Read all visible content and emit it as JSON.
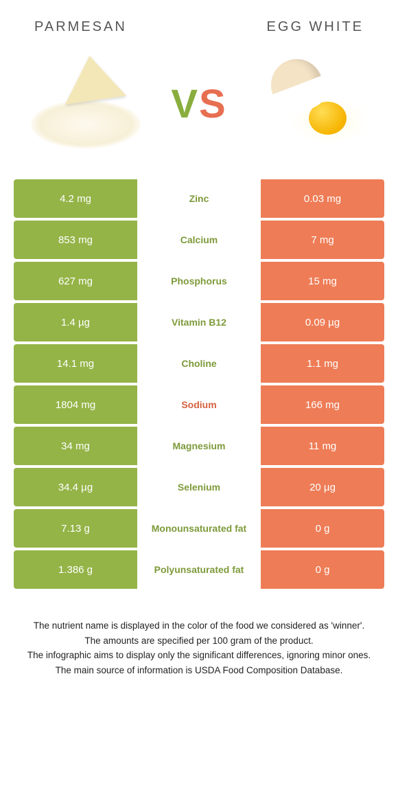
{
  "colors": {
    "left": "#94b447",
    "right": "#ee7c56",
    "left_text": "#7e9a3a",
    "right_text": "#d4603d"
  },
  "header": {
    "left_title": "Parmesan",
    "right_title": "Egg white"
  },
  "vs": {
    "v": "V",
    "s": "S"
  },
  "rows": [
    {
      "left": "4.2 mg",
      "name": "Zinc",
      "right": "0.03 mg",
      "winner": "left"
    },
    {
      "left": "853 mg",
      "name": "Calcium",
      "right": "7 mg",
      "winner": "left"
    },
    {
      "left": "627 mg",
      "name": "Phosphorus",
      "right": "15 mg",
      "winner": "left"
    },
    {
      "left": "1.4 µg",
      "name": "Vitamin B12",
      "right": "0.09 µg",
      "winner": "left"
    },
    {
      "left": "14.1 mg",
      "name": "Choline",
      "right": "1.1 mg",
      "winner": "left"
    },
    {
      "left": "1804 mg",
      "name": "Sodium",
      "right": "166 mg",
      "winner": "right"
    },
    {
      "left": "34 mg",
      "name": "Magnesium",
      "right": "11 mg",
      "winner": "left"
    },
    {
      "left": "34.4 µg",
      "name": "Selenium",
      "right": "20 µg",
      "winner": "left"
    },
    {
      "left": "7.13 g",
      "name": "Monounsaturated fat",
      "right": "0 g",
      "winner": "left"
    },
    {
      "left": "1.386 g",
      "name": "Polyunsaturated fat",
      "right": "0 g",
      "winner": "left"
    }
  ],
  "footnotes": [
    "The nutrient name is displayed in the color of the food we considered as 'winner'.",
    "The amounts are specified per 100 gram of the product.",
    "The infographic aims to display only the significant differences, ignoring minor ones.",
    "The main source of information is USDA Food Composition Database."
  ]
}
